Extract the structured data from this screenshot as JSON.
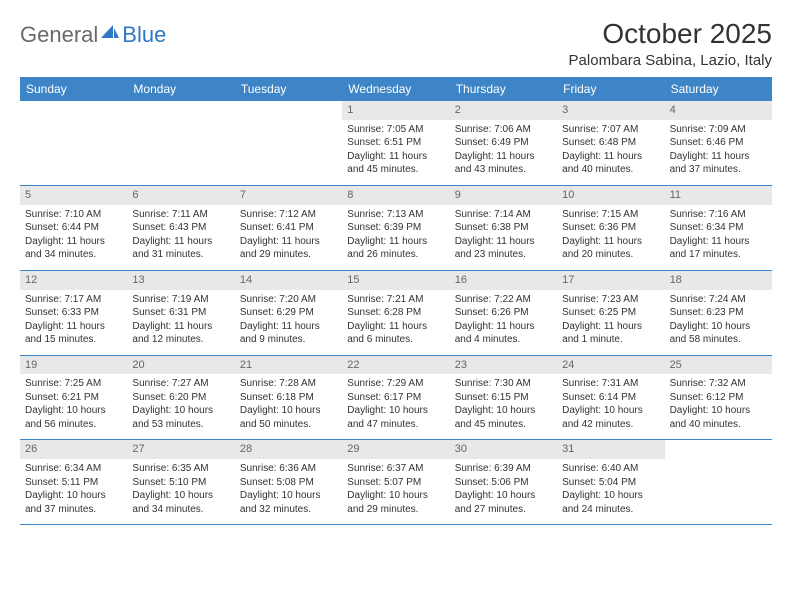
{
  "logo": {
    "text1": "General",
    "text2": "Blue"
  },
  "title": "October 2025",
  "location": "Palombara Sabina, Lazio, Italy",
  "colors": {
    "header_bg": "#3d85c6",
    "header_text": "#ffffff",
    "daynum_bg": "#e8e8e8",
    "daynum_text": "#666666",
    "divider": "#3d85c6",
    "logo_gray": "#6a6a6a",
    "logo_blue": "#2f79c2"
  },
  "day_headers": [
    "Sunday",
    "Monday",
    "Tuesday",
    "Wednesday",
    "Thursday",
    "Friday",
    "Saturday"
  ],
  "weeks": [
    [
      {
        "n": "",
        "empty": true
      },
      {
        "n": "",
        "empty": true
      },
      {
        "n": "",
        "empty": true
      },
      {
        "n": "1",
        "sunrise": "7:05 AM",
        "sunset": "6:51 PM",
        "daylight": "11 hours and 45 minutes."
      },
      {
        "n": "2",
        "sunrise": "7:06 AM",
        "sunset": "6:49 PM",
        "daylight": "11 hours and 43 minutes."
      },
      {
        "n": "3",
        "sunrise": "7:07 AM",
        "sunset": "6:48 PM",
        "daylight": "11 hours and 40 minutes."
      },
      {
        "n": "4",
        "sunrise": "7:09 AM",
        "sunset": "6:46 PM",
        "daylight": "11 hours and 37 minutes."
      }
    ],
    [
      {
        "n": "5",
        "sunrise": "7:10 AM",
        "sunset": "6:44 PM",
        "daylight": "11 hours and 34 minutes."
      },
      {
        "n": "6",
        "sunrise": "7:11 AM",
        "sunset": "6:43 PM",
        "daylight": "11 hours and 31 minutes."
      },
      {
        "n": "7",
        "sunrise": "7:12 AM",
        "sunset": "6:41 PM",
        "daylight": "11 hours and 29 minutes."
      },
      {
        "n": "8",
        "sunrise": "7:13 AM",
        "sunset": "6:39 PM",
        "daylight": "11 hours and 26 minutes."
      },
      {
        "n": "9",
        "sunrise": "7:14 AM",
        "sunset": "6:38 PM",
        "daylight": "11 hours and 23 minutes."
      },
      {
        "n": "10",
        "sunrise": "7:15 AM",
        "sunset": "6:36 PM",
        "daylight": "11 hours and 20 minutes."
      },
      {
        "n": "11",
        "sunrise": "7:16 AM",
        "sunset": "6:34 PM",
        "daylight": "11 hours and 17 minutes."
      }
    ],
    [
      {
        "n": "12",
        "sunrise": "7:17 AM",
        "sunset": "6:33 PM",
        "daylight": "11 hours and 15 minutes."
      },
      {
        "n": "13",
        "sunrise": "7:19 AM",
        "sunset": "6:31 PM",
        "daylight": "11 hours and 12 minutes."
      },
      {
        "n": "14",
        "sunrise": "7:20 AM",
        "sunset": "6:29 PM",
        "daylight": "11 hours and 9 minutes."
      },
      {
        "n": "15",
        "sunrise": "7:21 AM",
        "sunset": "6:28 PM",
        "daylight": "11 hours and 6 minutes."
      },
      {
        "n": "16",
        "sunrise": "7:22 AM",
        "sunset": "6:26 PM",
        "daylight": "11 hours and 4 minutes."
      },
      {
        "n": "17",
        "sunrise": "7:23 AM",
        "sunset": "6:25 PM",
        "daylight": "11 hours and 1 minute."
      },
      {
        "n": "18",
        "sunrise": "7:24 AM",
        "sunset": "6:23 PM",
        "daylight": "10 hours and 58 minutes."
      }
    ],
    [
      {
        "n": "19",
        "sunrise": "7:25 AM",
        "sunset": "6:21 PM",
        "daylight": "10 hours and 56 minutes."
      },
      {
        "n": "20",
        "sunrise": "7:27 AM",
        "sunset": "6:20 PM",
        "daylight": "10 hours and 53 minutes."
      },
      {
        "n": "21",
        "sunrise": "7:28 AM",
        "sunset": "6:18 PM",
        "daylight": "10 hours and 50 minutes."
      },
      {
        "n": "22",
        "sunrise": "7:29 AM",
        "sunset": "6:17 PM",
        "daylight": "10 hours and 47 minutes."
      },
      {
        "n": "23",
        "sunrise": "7:30 AM",
        "sunset": "6:15 PM",
        "daylight": "10 hours and 45 minutes."
      },
      {
        "n": "24",
        "sunrise": "7:31 AM",
        "sunset": "6:14 PM",
        "daylight": "10 hours and 42 minutes."
      },
      {
        "n": "25",
        "sunrise": "7:32 AM",
        "sunset": "6:12 PM",
        "daylight": "10 hours and 40 minutes."
      }
    ],
    [
      {
        "n": "26",
        "sunrise": "6:34 AM",
        "sunset": "5:11 PM",
        "daylight": "10 hours and 37 minutes."
      },
      {
        "n": "27",
        "sunrise": "6:35 AM",
        "sunset": "5:10 PM",
        "daylight": "10 hours and 34 minutes."
      },
      {
        "n": "28",
        "sunrise": "6:36 AM",
        "sunset": "5:08 PM",
        "daylight": "10 hours and 32 minutes."
      },
      {
        "n": "29",
        "sunrise": "6:37 AM",
        "sunset": "5:07 PM",
        "daylight": "10 hours and 29 minutes."
      },
      {
        "n": "30",
        "sunrise": "6:39 AM",
        "sunset": "5:06 PM",
        "daylight": "10 hours and 27 minutes."
      },
      {
        "n": "31",
        "sunrise": "6:40 AM",
        "sunset": "5:04 PM",
        "daylight": "10 hours and 24 minutes."
      },
      {
        "n": "",
        "empty": true
      }
    ]
  ],
  "labels": {
    "sunrise": "Sunrise: ",
    "sunset": "Sunset: ",
    "daylight": "Daylight: "
  }
}
